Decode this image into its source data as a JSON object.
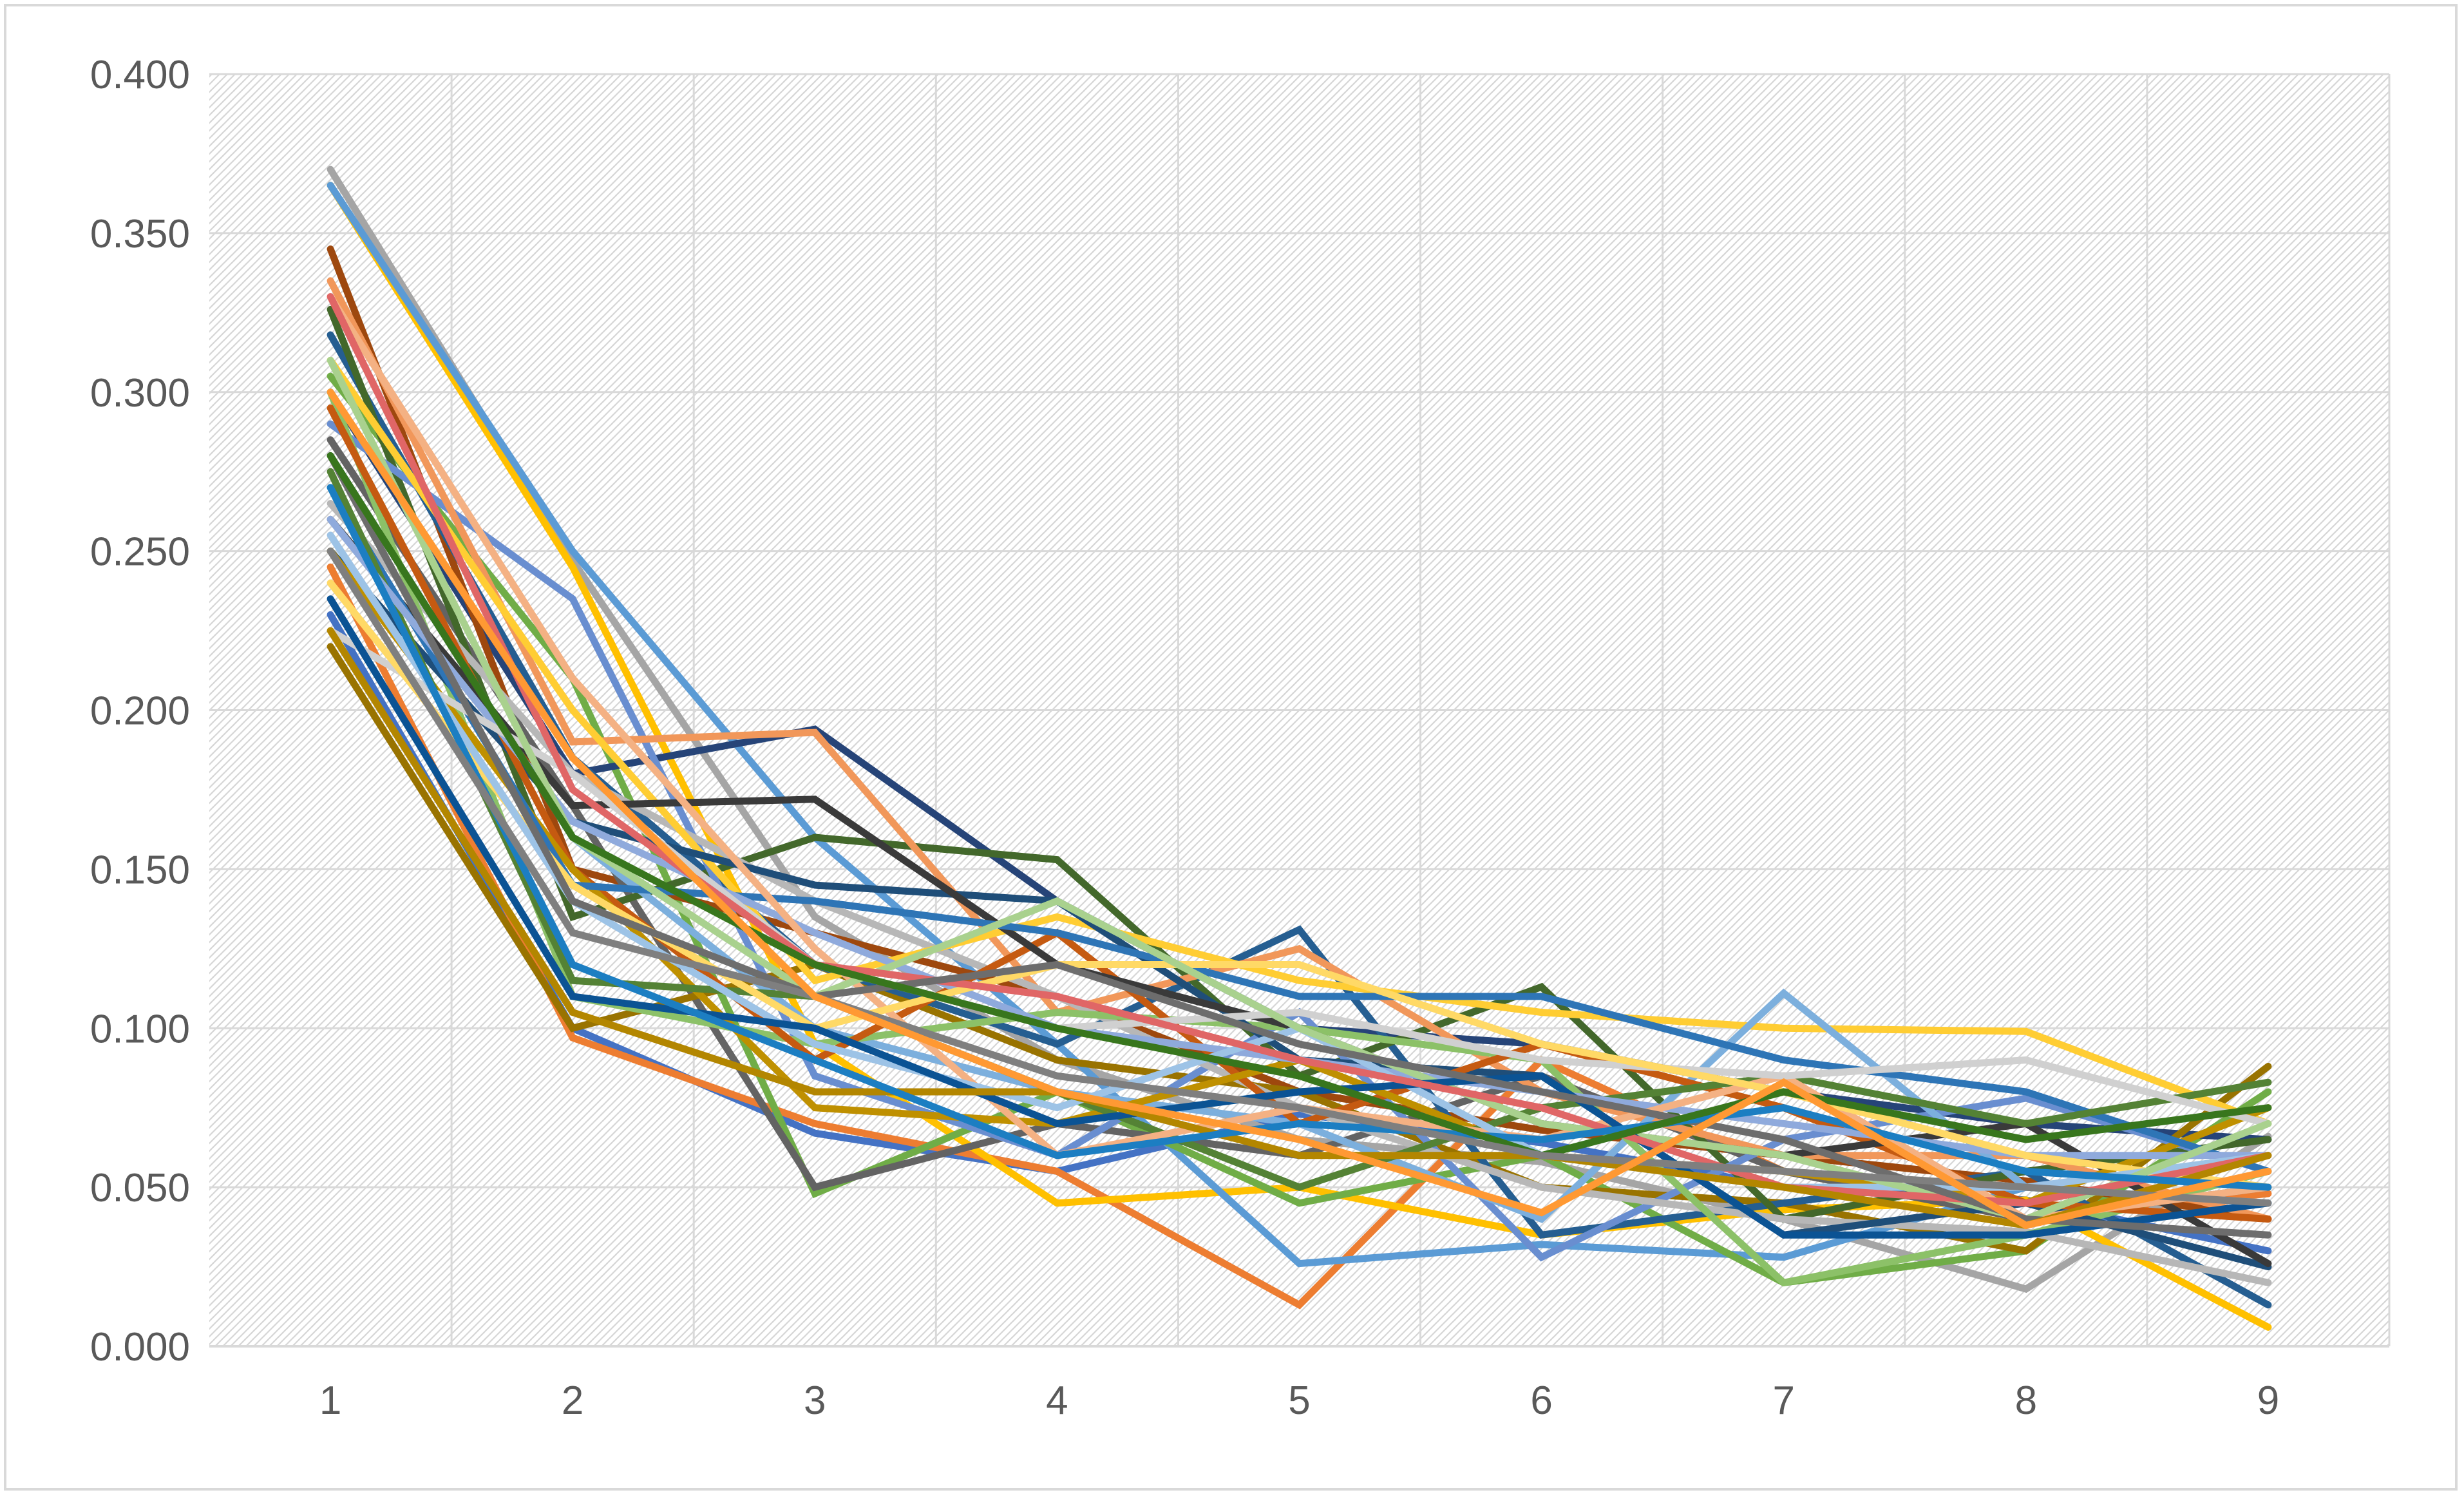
{
  "chart_data": {
    "type": "line",
    "title": "",
    "xlabel": "",
    "ylabel": "",
    "x": [
      1,
      2,
      3,
      4,
      5,
      6,
      7,
      8,
      9
    ],
    "x_tick_labels": [
      "1",
      "2",
      "3",
      "4",
      "5",
      "6",
      "7",
      "8",
      "9"
    ],
    "y_tick_labels": [
      "0.000",
      "0.050",
      "0.100",
      "0.150",
      "0.200",
      "0.250",
      "0.300",
      "0.350",
      "0.400"
    ],
    "ylim": [
      0,
      0.4
    ],
    "grid": true,
    "legend": "none",
    "colors": [
      "#4472c4",
      "#ed7d31",
      "#a5a5a5",
      "#ffc000",
      "#5b9bd5",
      "#70ad47",
      "#264478",
      "#9e480e",
      "#636363",
      "#997300",
      "#255e91",
      "#43682b",
      "#698ed0",
      "#f1975a",
      "#b7b7b7",
      "#ffcd33",
      "#7cafdd",
      "#8cc168",
      "#1f4e79",
      "#c55a11",
      "#3a3a3a",
      "#bf9000",
      "#2e75b6",
      "#548235",
      "#8faadc",
      "#f4b183",
      "#d0d0d0",
      "#ffd966",
      "#9dc3e6",
      "#a9d18e",
      "#0b5394",
      "#e06666",
      "#6d6d6d",
      "#b38600",
      "#1c7ec2",
      "#38761d",
      "#7f7f7f",
      "#ff9933"
    ],
    "series": [
      {
        "values": [
          0.23,
          0.1,
          0.067,
          0.055,
          0.073,
          0.064,
          0.05,
          0.046,
          0.03
        ]
      },
      {
        "values": [
          0.245,
          0.097,
          0.07,
          0.055,
          0.013,
          0.09,
          0.055,
          0.04,
          0.048
        ]
      },
      {
        "values": [
          0.37,
          0.247,
          0.135,
          0.09,
          0.065,
          0.058,
          0.04,
          0.018,
          0.066
        ]
      },
      {
        "values": [
          0.365,
          0.245,
          0.095,
          0.045,
          0.05,
          0.035,
          0.043,
          0.046,
          0.006
        ]
      },
      {
        "values": [
          0.365,
          0.25,
          0.16,
          0.095,
          0.026,
          0.032,
          0.028,
          0.05,
          0.045
        ]
      },
      {
        "values": [
          0.305,
          0.21,
          0.048,
          0.08,
          0.045,
          0.06,
          0.02,
          0.03,
          0.08
        ]
      },
      {
        "values": [
          0.3,
          0.18,
          0.194,
          0.14,
          0.1,
          0.095,
          0.08,
          0.07,
          0.065
        ]
      },
      {
        "values": [
          0.345,
          0.15,
          0.13,
          0.11,
          0.08,
          0.068,
          0.06,
          0.052,
          0.04
        ]
      },
      {
        "values": [
          0.285,
          0.17,
          0.05,
          0.07,
          0.06,
          0.085,
          0.055,
          0.04,
          0.05
        ]
      },
      {
        "values": [
          0.22,
          0.1,
          0.12,
          0.09,
          0.08,
          0.05,
          0.045,
          0.03,
          0.088
        ]
      },
      {
        "values": [
          0.318,
          0.185,
          0.12,
          0.095,
          0.131,
          0.035,
          0.045,
          0.055,
          0.013
        ]
      },
      {
        "values": [
          0.326,
          0.135,
          0.16,
          0.153,
          0.085,
          0.113,
          0.04,
          0.055,
          0.065
        ]
      },
      {
        "values": [
          0.29,
          0.235,
          0.085,
          0.06,
          0.105,
          0.028,
          0.065,
          0.078,
          0.055
        ]
      },
      {
        "values": [
          0.335,
          0.19,
          0.193,
          0.105,
          0.125,
          0.08,
          0.06,
          0.06,
          0.04
        ]
      },
      {
        "values": [
          0.265,
          0.18,
          0.14,
          0.11,
          0.075,
          0.05,
          0.04,
          0.036,
          0.02
        ]
      },
      {
        "values": [
          0.31,
          0.2,
          0.115,
          0.135,
          0.115,
          0.105,
          0.1,
          0.099,
          0.07
        ]
      },
      {
        "values": [
          0.28,
          0.16,
          0.1,
          0.08,
          0.07,
          0.04,
          0.111,
          0.05,
          0.045
        ]
      },
      {
        "values": [
          0.3,
          0.11,
          0.095,
          0.105,
          0.1,
          0.09,
          0.02,
          0.035,
          0.055
        ]
      },
      {
        "values": [
          0.25,
          0.165,
          0.145,
          0.14,
          0.09,
          0.085,
          0.035,
          0.045,
          0.025
        ]
      },
      {
        "values": [
          0.295,
          0.15,
          0.09,
          0.13,
          0.07,
          0.095,
          0.075,
          0.045,
          0.04
        ]
      },
      {
        "values": [
          0.26,
          0.17,
          0.172,
          0.12,
          0.1,
          0.07,
          0.06,
          0.07,
          0.026
        ]
      },
      {
        "values": [
          0.25,
          0.15,
          0.075,
          0.07,
          0.09,
          0.06,
          0.055,
          0.045,
          0.075
        ]
      },
      {
        "values": [
          0.27,
          0.145,
          0.14,
          0.13,
          0.11,
          0.11,
          0.09,
          0.08,
          0.055
        ]
      },
      {
        "values": [
          0.275,
          0.115,
          0.11,
          0.08,
          0.05,
          0.075,
          0.085,
          0.07,
          0.083
        ]
      },
      {
        "values": [
          0.26,
          0.165,
          0.13,
          0.1,
          0.09,
          0.08,
          0.07,
          0.06,
          0.06
        ]
      },
      {
        "values": [
          0.33,
          0.21,
          0.125,
          0.06,
          0.075,
          0.065,
          0.085,
          0.04,
          0.05
        ]
      },
      {
        "values": [
          0.225,
          0.18,
          0.12,
          0.1,
          0.105,
          0.09,
          0.085,
          0.09,
          0.07
        ]
      },
      {
        "values": [
          0.24,
          0.145,
          0.1,
          0.12,
          0.12,
          0.095,
          0.08,
          0.06,
          0.05
        ]
      },
      {
        "values": [
          0.255,
          0.14,
          0.095,
          0.075,
          0.1,
          0.06,
          0.05,
          0.05,
          0.06
        ]
      },
      {
        "values": [
          0.31,
          0.16,
          0.11,
          0.14,
          0.1,
          0.07,
          0.06,
          0.04,
          0.07
        ]
      },
      {
        "values": [
          0.235,
          0.11,
          0.1,
          0.07,
          0.08,
          0.085,
          0.035,
          0.035,
          0.045
        ]
      },
      {
        "values": [
          0.33,
          0.175,
          0.12,
          0.11,
          0.09,
          0.075,
          0.05,
          0.045,
          0.06
        ]
      },
      {
        "values": [
          0.28,
          0.14,
          0.11,
          0.12,
          0.095,
          0.08,
          0.065,
          0.04,
          0.035
        ]
      },
      {
        "values": [
          0.225,
          0.105,
          0.08,
          0.08,
          0.06,
          0.06,
          0.05,
          0.038,
          0.06
        ]
      },
      {
        "values": [
          0.27,
          0.12,
          0.09,
          0.06,
          0.07,
          0.065,
          0.075,
          0.055,
          0.05
        ]
      },
      {
        "values": [
          0.28,
          0.16,
          0.12,
          0.1,
          0.085,
          0.06,
          0.08,
          0.065,
          0.075
        ]
      },
      {
        "values": [
          0.25,
          0.13,
          0.11,
          0.085,
          0.075,
          0.06,
          0.055,
          0.05,
          0.045
        ]
      },
      {
        "values": [
          0.3,
          0.185,
          0.11,
          0.08,
          0.065,
          0.042,
          0.083,
          0.038,
          0.055
        ]
      }
    ]
  }
}
